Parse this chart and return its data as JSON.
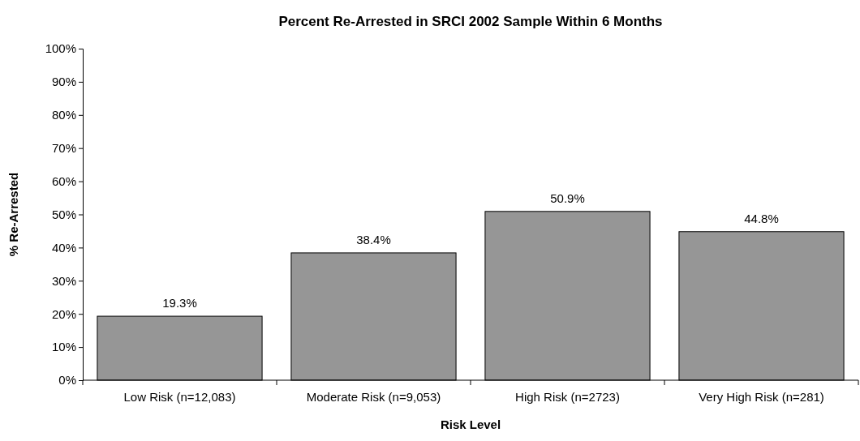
{
  "chart_data": {
    "type": "bar",
    "title": "Percent Re-Arrested in SRCI 2002 Sample Within 6 Months",
    "xlabel": "Risk Level",
    "ylabel": "% Re-Arrested",
    "categories": [
      "Low Risk (n=12,083)",
      "Moderate Risk (n=9,053)",
      "High Risk (n=2723)",
      "Very High Risk (n=281)"
    ],
    "values": [
      19.3,
      38.4,
      50.9,
      44.8
    ],
    "value_labels": [
      "19.3%",
      "38.4%",
      "50.9%",
      "44.8%"
    ],
    "color": "#969696",
    "ylim": [
      0,
      100
    ],
    "yticks": [
      {
        "value": 0,
        "label": "0%"
      },
      {
        "value": 10,
        "label": "10%"
      },
      {
        "value": 20,
        "label": "20%"
      },
      {
        "value": 30,
        "label": "30%"
      },
      {
        "value": 40,
        "label": "40%"
      },
      {
        "value": 50,
        "label": "50%"
      },
      {
        "value": 60,
        "label": "60%"
      },
      {
        "value": 70,
        "label": "70%"
      },
      {
        "value": 80,
        "label": "80%"
      },
      {
        "value": 90,
        "label": "90%"
      },
      {
        "value": 100,
        "label": "100%"
      }
    ],
    "grid": false
  }
}
